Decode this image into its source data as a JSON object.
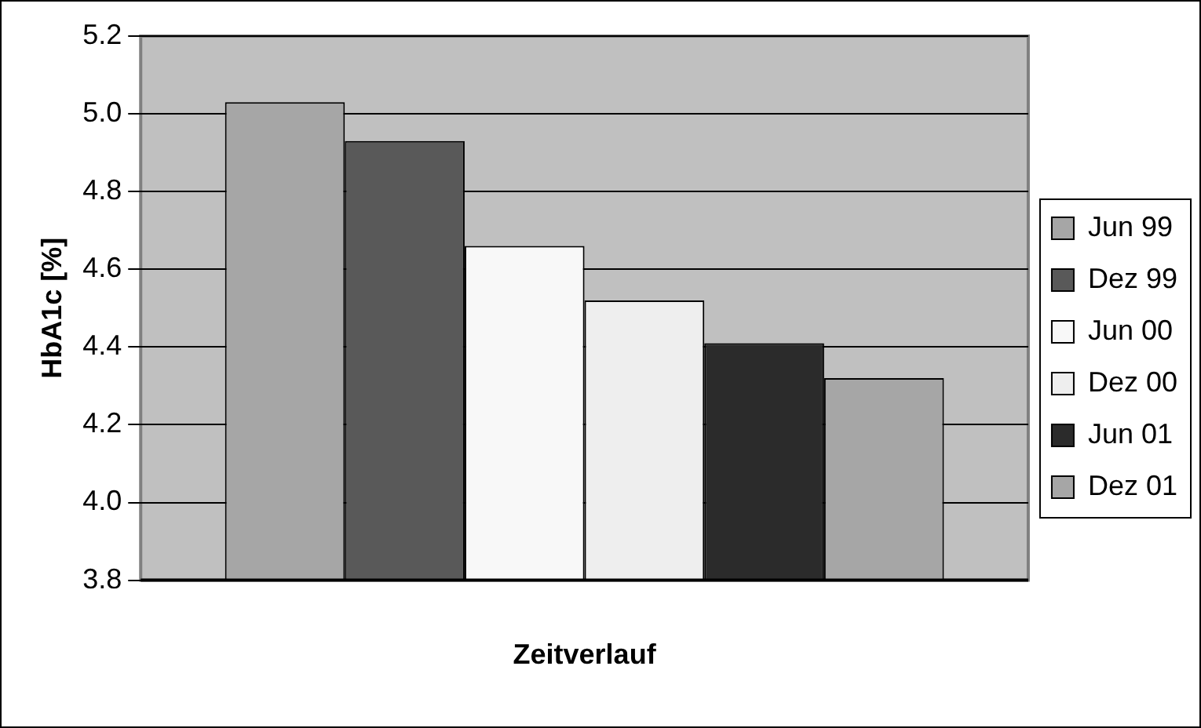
{
  "chart_data": {
    "type": "bar",
    "xlabel": "Zeitverlauf",
    "ylabel": "HbA1c [%]",
    "categories": [
      null
    ],
    "series": [
      {
        "name": "Jun 99",
        "color": "#a6a6a6",
        "values": [
          5.03
        ]
      },
      {
        "name": "Dez 99",
        "color": "#595959",
        "values": [
          4.93
        ]
      },
      {
        "name": "Jun 00",
        "color": "#f8f8f8",
        "values": [
          4.66
        ]
      },
      {
        "name": "Dez 00",
        "color": "#eeeeee",
        "values": [
          4.52
        ]
      },
      {
        "name": "Jun 01",
        "color": "#2b2b2b",
        "values": [
          4.41
        ]
      },
      {
        "name": "Dez 01",
        "color": "#a6a6a6",
        "values": [
          4.32
        ]
      }
    ],
    "ylim": [
      3.8,
      5.2
    ],
    "yticks": [
      3.8,
      {
        "value": 4,
        "label": "4.0"
      },
      4.2,
      4.4,
      4.6,
      4.8,
      {
        "value": 5,
        "label": "5.0"
      },
      5.2
    ],
    "grid": "y",
    "legend": "right"
  }
}
